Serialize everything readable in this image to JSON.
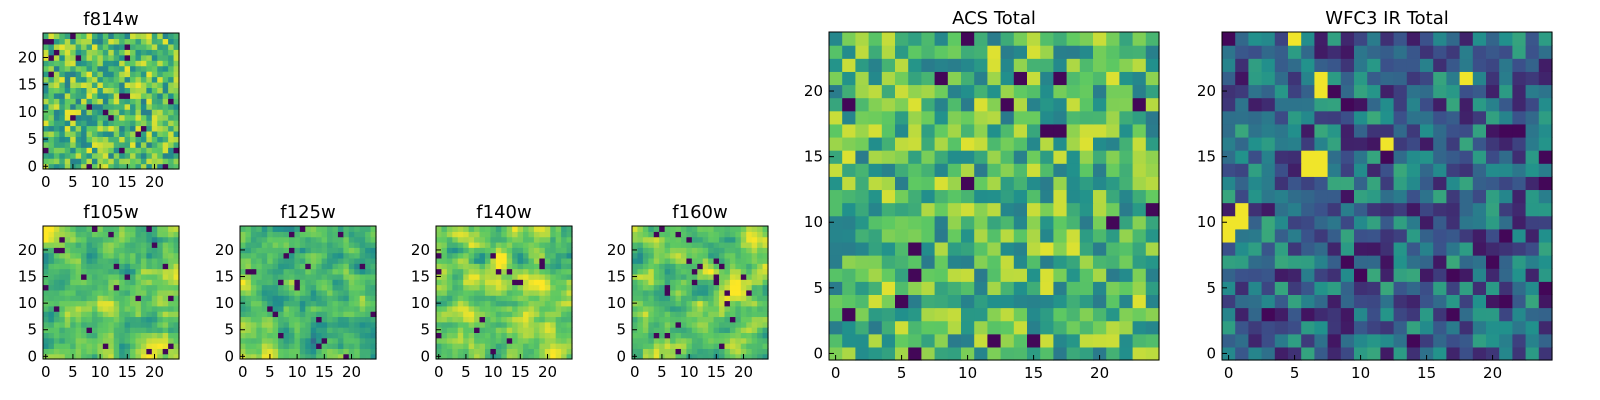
{
  "chart_data": [
    {
      "id": "f814w",
      "type": "heatmap",
      "title": "f814w",
      "xlim": [
        0,
        24
      ],
      "ylim": [
        0,
        24
      ],
      "xticks": [
        "0",
        "5",
        "10",
        "15",
        "20"
      ],
      "yticks": [
        "0",
        "5",
        "10",
        "15",
        "20"
      ],
      "grid": false,
      "level": 0.7,
      "texture": "noisy",
      "seed": 11
    },
    {
      "id": "f105w",
      "type": "heatmap",
      "title": "f105w",
      "xlim": [
        0,
        24
      ],
      "ylim": [
        0,
        24
      ],
      "xticks": [
        "0",
        "5",
        "10",
        "15",
        "20"
      ],
      "yticks": [
        "0",
        "5",
        "10",
        "15",
        "20"
      ],
      "grid": false,
      "level": 0.74,
      "texture": "smooth",
      "seed": 23
    },
    {
      "id": "f125w",
      "type": "heatmap",
      "title": "f125w",
      "xlim": [
        0,
        24
      ],
      "ylim": [
        0,
        24
      ],
      "xticks": [
        "0",
        "5",
        "10",
        "15",
        "20"
      ],
      "yticks": [
        "0",
        "5",
        "10",
        "15",
        "20"
      ],
      "grid": false,
      "level": 0.68,
      "texture": "smooth",
      "seed": 37
    },
    {
      "id": "f140w",
      "type": "heatmap",
      "title": "f140w",
      "xlim": [
        0,
        24
      ],
      "ylim": [
        0,
        24
      ],
      "xticks": [
        "0",
        "5",
        "10",
        "15",
        "20"
      ],
      "yticks": [
        "0",
        "5",
        "10",
        "15",
        "20"
      ],
      "grid": false,
      "level": 0.76,
      "texture": "smooth",
      "seed": 41
    },
    {
      "id": "f160w",
      "type": "heatmap",
      "title": "f160w",
      "xlim": [
        0,
        24
      ],
      "ylim": [
        0,
        24
      ],
      "xticks": [
        "0",
        "5",
        "10",
        "15",
        "20"
      ],
      "yticks": [
        "0",
        "5",
        "10",
        "15",
        "20"
      ],
      "grid": false,
      "level": 0.74,
      "texture": "smooth",
      "seed": 53
    },
    {
      "id": "acs_total",
      "type": "heatmap",
      "title": "ACS Total",
      "xlim": [
        0,
        24
      ],
      "ylim": [
        0,
        24
      ],
      "xticks": [
        "0",
        "5",
        "10",
        "15",
        "20"
      ],
      "yticks": [
        "0",
        "5",
        "10",
        "15",
        "20"
      ],
      "grid": false,
      "level": 0.68,
      "texture": "noisy",
      "seed": 67
    },
    {
      "id": "wfc3_ir_total",
      "type": "heatmap",
      "title": "WFC3 IR Total",
      "xlim": [
        0,
        24
      ],
      "ylim": [
        0,
        24
      ],
      "xticks": [
        "0",
        "5",
        "10",
        "15",
        "20"
      ],
      "yticks": [
        "0",
        "5",
        "10",
        "15",
        "20"
      ],
      "grid": false,
      "level": 0.33,
      "texture": "noisy",
      "seed": 79,
      "hotspots": [
        {
          "x": 6,
          "y": 14
        },
        {
          "x": 7,
          "y": 14
        },
        {
          "x": 6,
          "y": 15
        },
        {
          "x": 7,
          "y": 15
        },
        {
          "x": 0,
          "y": 9
        },
        {
          "x": 1,
          "y": 10
        },
        {
          "x": 0,
          "y": 10
        },
        {
          "x": 1,
          "y": 11
        },
        {
          "x": 5,
          "y": 24
        },
        {
          "x": 7,
          "y": 21
        },
        {
          "x": 7,
          "y": 20
        },
        {
          "x": 18,
          "y": 21
        },
        {
          "x": 12,
          "y": 16
        }
      ]
    }
  ],
  "colormap": [
    "#440154",
    "#3b528b",
    "#21918c",
    "#5ec962",
    "#fde725"
  ]
}
